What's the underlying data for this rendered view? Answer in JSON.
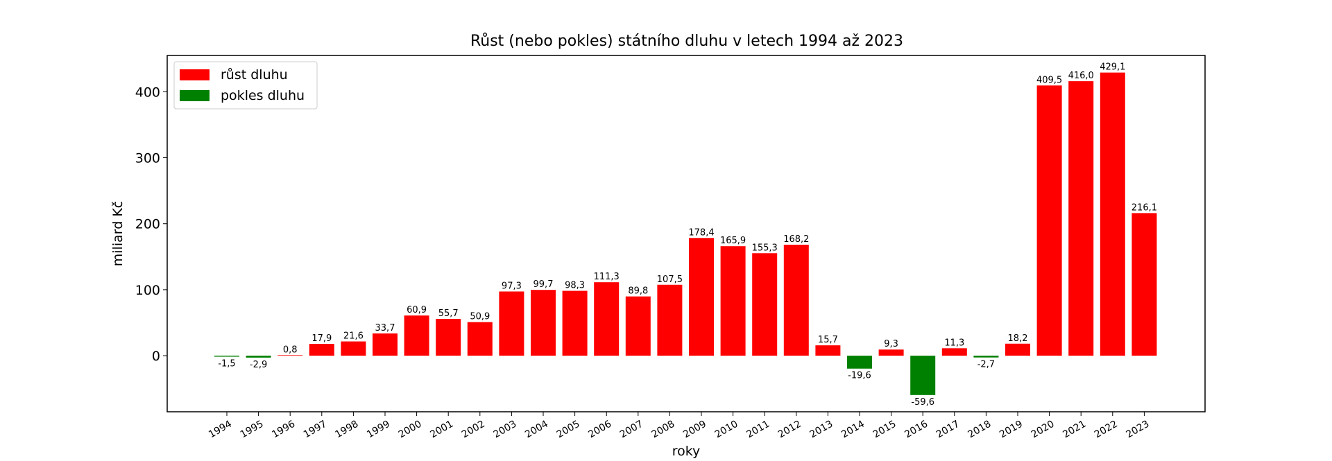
{
  "chart_data": {
    "type": "bar",
    "title": "Růst (nebo pokles) státního dluhu v letech 1994 až 2023",
    "xlabel": "roky",
    "ylabel": "miliard Kč",
    "ylim": [
      -85,
      455
    ],
    "yticks": [
      0,
      100,
      200,
      300,
      400
    ],
    "grid": false,
    "legend_position": "top-left",
    "legend": [
      {
        "label": "růst dluhu",
        "color": "#ff0000"
      },
      {
        "label": "pokles dluhu",
        "color": "#008000"
      }
    ],
    "colors": {
      "increase": "#ff0000",
      "decrease": "#008000"
    },
    "categories": [
      "1994",
      "1995",
      "1996",
      "1997",
      "1998",
      "1999",
      "2000",
      "2001",
      "2002",
      "2003",
      "2004",
      "2005",
      "2006",
      "2007",
      "2008",
      "2009",
      "2010",
      "2011",
      "2012",
      "2013",
      "2014",
      "2015",
      "2016",
      "2017",
      "2018",
      "2019",
      "2020",
      "2021",
      "2022",
      "2023"
    ],
    "values": [
      -1.5,
      -2.9,
      0.8,
      17.9,
      21.6,
      33.7,
      60.9,
      55.7,
      50.9,
      97.3,
      99.7,
      98.3,
      111.3,
      89.8,
      107.5,
      178.4,
      165.9,
      155.3,
      168.2,
      15.7,
      -19.6,
      9.3,
      -59.6,
      11.3,
      -2.7,
      18.2,
      409.5,
      416.0,
      429.1,
      216.1
    ],
    "value_labels": [
      "-1,5",
      "-2,9",
      "0,8",
      "17,9",
      "21,6",
      "33,7",
      "60,9",
      "55,7",
      "50,9",
      "97,3",
      "99,7",
      "98,3",
      "111,3",
      "89,8",
      "107,5",
      "178,4",
      "165,9",
      "155,3",
      "168,2",
      "15,7",
      "-19,6",
      "9,3",
      "-59,6",
      "11,3",
      "-2,7",
      "18,2",
      "409,5",
      "416,0",
      "429,1",
      "216,1"
    ]
  }
}
